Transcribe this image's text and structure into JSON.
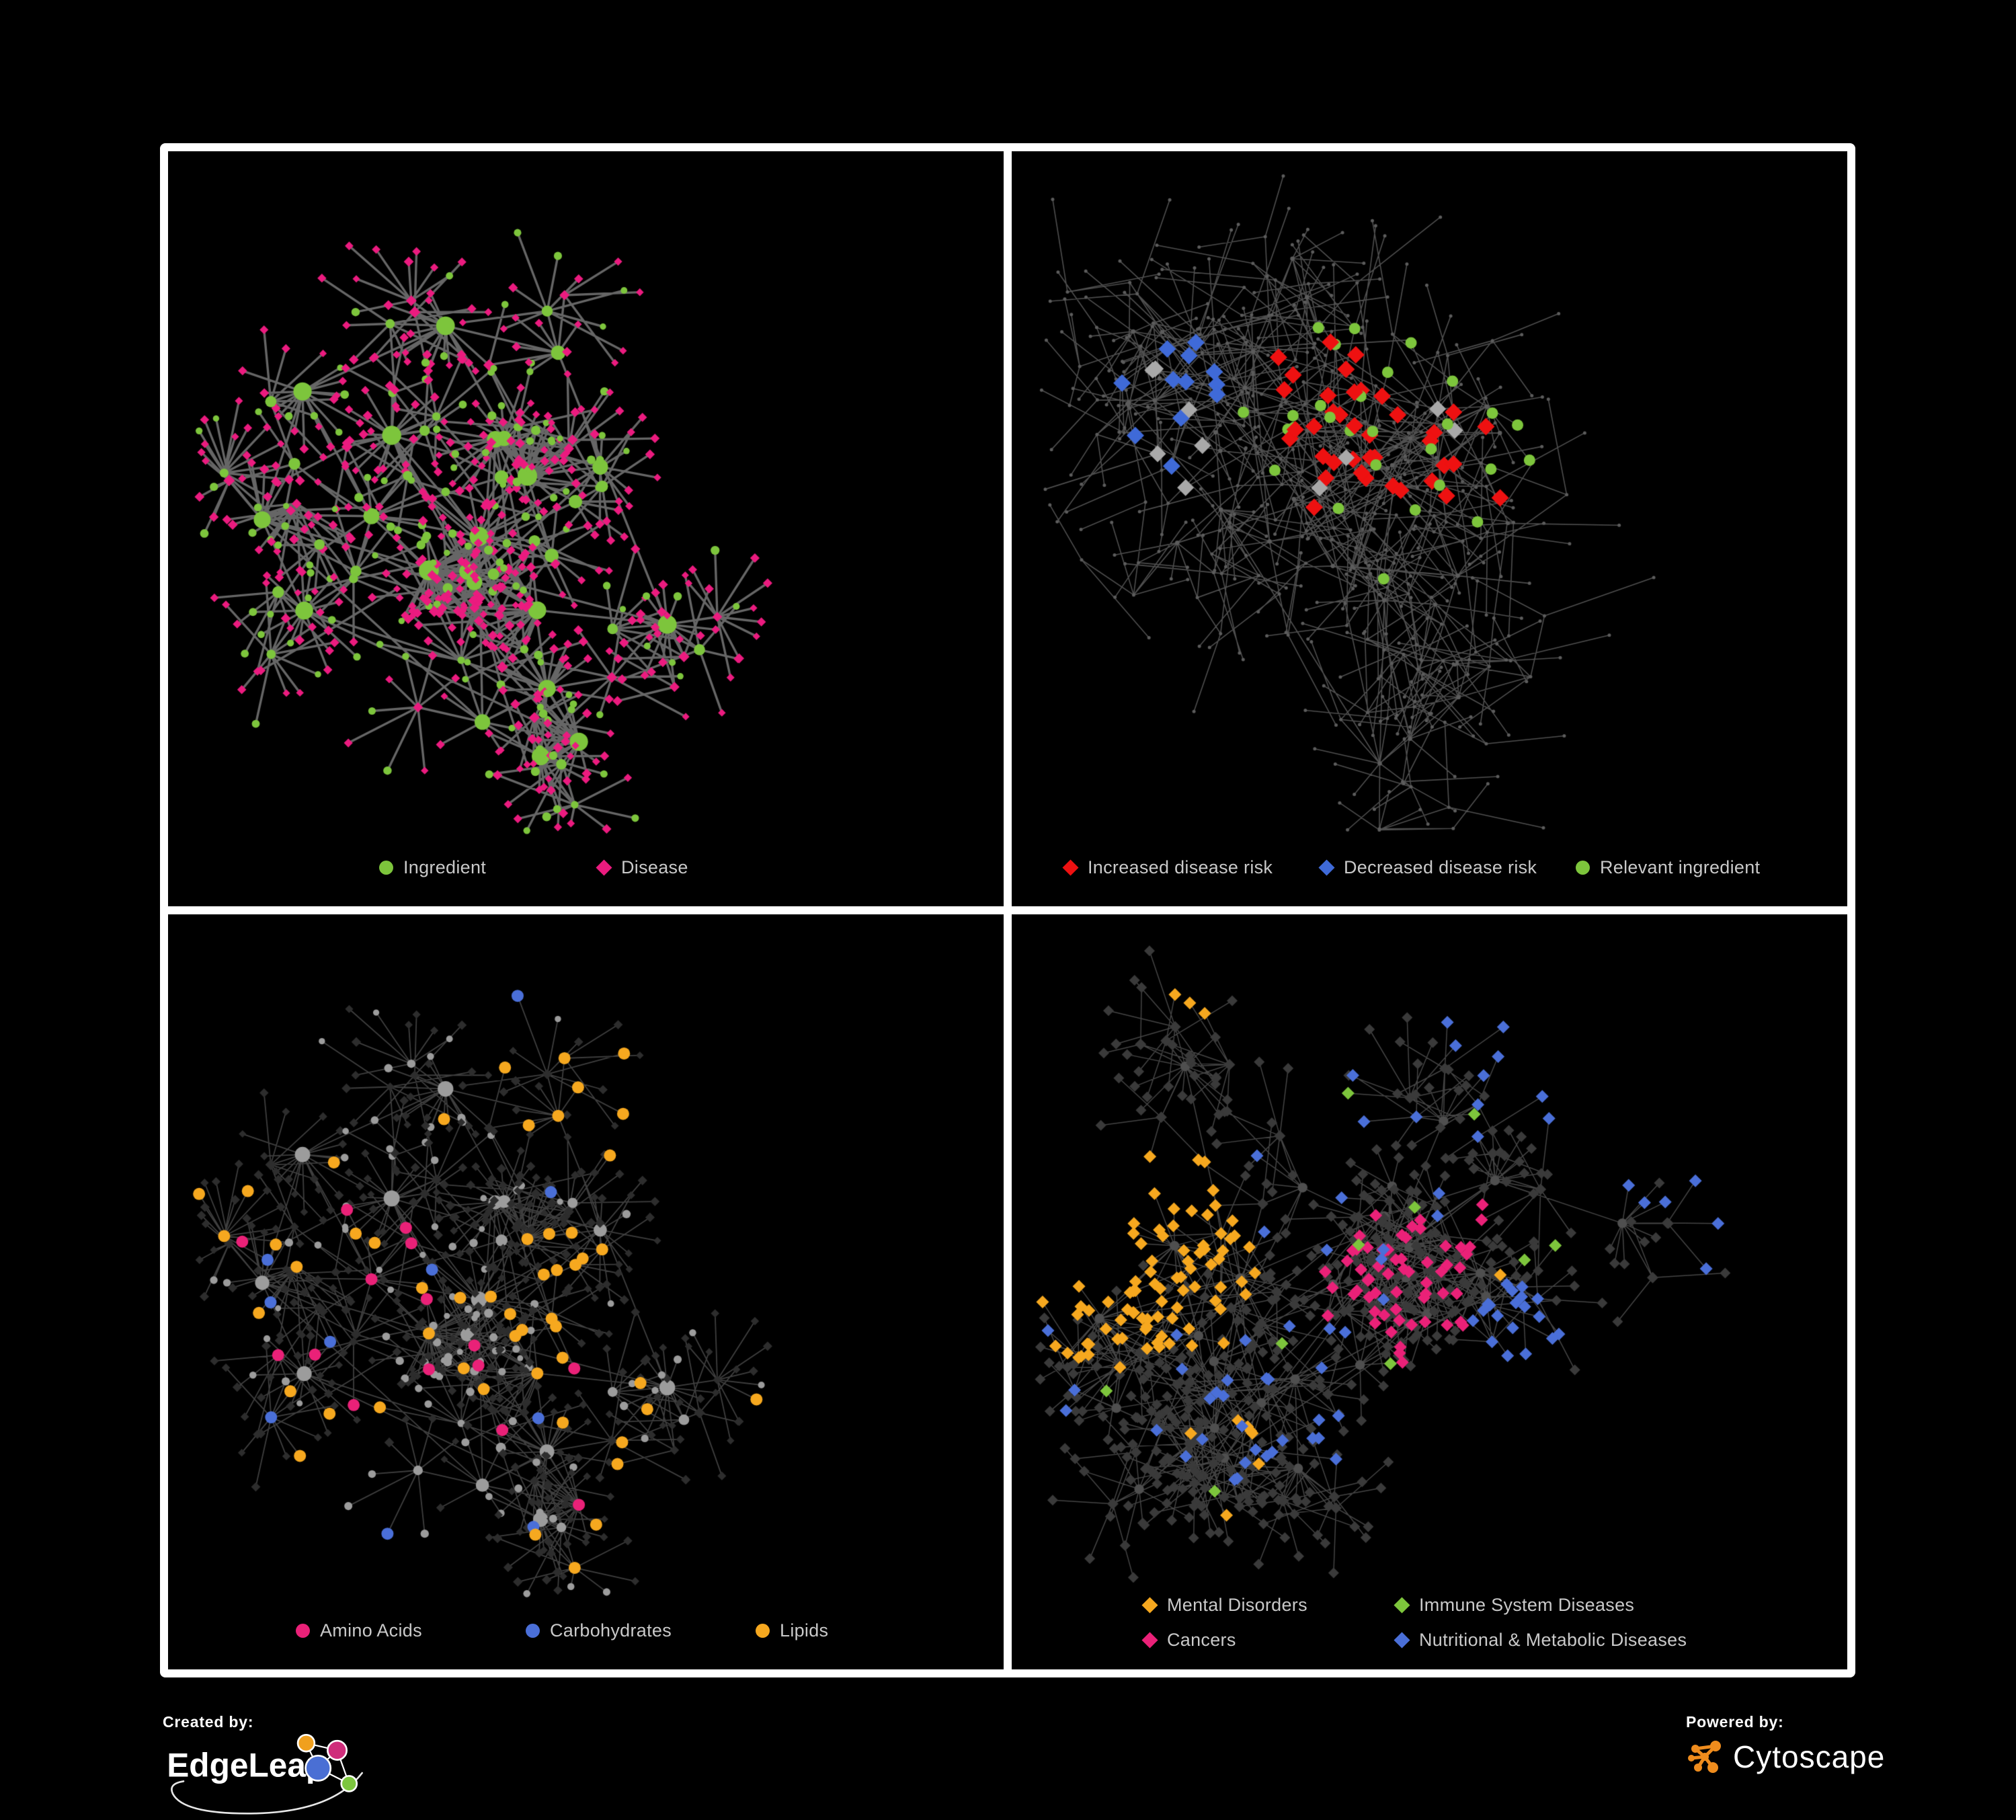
{
  "page": {
    "background_color": "#000000"
  },
  "branding": {
    "created_by_label": "Created by:",
    "created_by_name": "EdgeLeap",
    "powered_by_label": "Powered by:",
    "powered_by_name": "Cytoscape"
  },
  "chart_data": {
    "type": "network",
    "layout": "2x2 grid of node-link network views of the same ingredient-disease graph, each panel recolored by a different classification; legends at the bottom of each panel; black panel backgrounds with white grid frame",
    "background": "#000000",
    "panels": [
      {
        "name": "ingredient-disease",
        "edge_color": "#6b6b6b",
        "legend": [
          {
            "label": "Ingredient",
            "shape": "circle",
            "color": "#7dc53c"
          },
          {
            "label": "Disease",
            "shape": "diamond",
            "color": "#eb1b7f"
          }
        ],
        "node_classes": [
          {
            "class": "ingredient",
            "shape": "circle",
            "color": "#7dc53c",
            "approx_count": 240
          },
          {
            "class": "disease",
            "shape": "diamond",
            "color": "#eb1b7f",
            "approx_count": 520
          }
        ]
      },
      {
        "name": "disease-risk",
        "edge_color": "#5d5d5d",
        "base_node_color": "#5c5c5c",
        "legend": [
          {
            "label": "Increased disease risk",
            "shape": "diamond",
            "color": "#ee1111"
          },
          {
            "label": "Decreased disease risk",
            "shape": "diamond",
            "color": "#3f6ad8"
          },
          {
            "label": "Relevant ingredient",
            "shape": "circle",
            "color": "#7dc53c"
          }
        ],
        "node_classes": [
          {
            "class": "increased-disease-risk",
            "shape": "diamond",
            "color": "#ee1111",
            "approx_count": 38
          },
          {
            "class": "decreased-disease-risk",
            "shape": "diamond",
            "color": "#3f6ad8",
            "approx_count": 12
          },
          {
            "class": "undirected-association",
            "shape": "diamond",
            "color": "#a9a9a9",
            "approx_count": 10
          },
          {
            "class": "relevant-ingredient",
            "shape": "circle",
            "color": "#7dc53c",
            "approx_count": 28
          }
        ]
      },
      {
        "name": "nutrient-categories",
        "edge_color": "#9d9d9d",
        "unclassified_circle_color": "#9c9c9c",
        "unclassified_diamond_color": "#2d2d2d",
        "legend": [
          {
            "label": "Amino Acids",
            "shape": "circle",
            "color": "#ea2178"
          },
          {
            "label": "Carbohydrates",
            "shape": "circle",
            "color": "#4a6fd8"
          },
          {
            "label": "Lipids",
            "shape": "circle",
            "color": "#f6a81f"
          }
        ],
        "node_classes": [
          {
            "class": "amino-acids",
            "shape": "circle",
            "color": "#ea2178",
            "approx_count": 15
          },
          {
            "class": "carbohydrates",
            "shape": "circle",
            "color": "#4a6fd8",
            "approx_count": 13
          },
          {
            "class": "lipids",
            "shape": "circle",
            "color": "#f6a81f",
            "approx_count": 58
          }
        ]
      },
      {
        "name": "disease-categories",
        "edge_color": "#8a8a8a",
        "base_node_color": "#3a3a3a",
        "hub_node_color": "#4f4f4f",
        "legend": [
          {
            "label": "Mental Disorders",
            "shape": "diamond",
            "color": "#f6a81f"
          },
          {
            "label": "Immune System Diseases",
            "shape": "diamond",
            "color": "#7dc53c"
          },
          {
            "label": "Cancers",
            "shape": "diamond",
            "color": "#ea2178"
          },
          {
            "label": "Nutritional & Metabolic Diseases",
            "shape": "diamond",
            "color": "#4a6fd8"
          }
        ],
        "node_classes": [
          {
            "class": "mental-disorders",
            "shape": "diamond",
            "color": "#f6a81f",
            "approx_count": 95
          },
          {
            "class": "immune-system-diseases",
            "shape": "diamond",
            "color": "#7dc53c",
            "approx_count": 10
          },
          {
            "class": "cancers",
            "shape": "diamond",
            "color": "#ea2178",
            "approx_count": 60
          },
          {
            "class": "nutritional-metabolic-diseases",
            "shape": "diamond",
            "color": "#4a6fd8",
            "approx_count": 78
          }
        ]
      }
    ]
  }
}
